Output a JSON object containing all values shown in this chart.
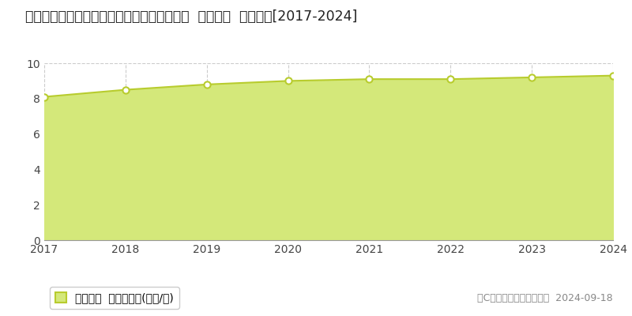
{
  "title": "大分県宇佐市大字葛原字東ノ田２３４番１外  公示地価  地価推移[2017-2024]",
  "years": [
    2017,
    2018,
    2019,
    2020,
    2021,
    2022,
    2023,
    2024
  ],
  "values": [
    8.1,
    8.5,
    8.8,
    9.0,
    9.1,
    9.1,
    9.2,
    9.3
  ],
  "line_color": "#b8cc2e",
  "fill_color": "#d4e87a",
  "fill_alpha": 1.0,
  "marker_facecolor": "white",
  "marker_edge_color": "#b8cc2e",
  "bg_color": "#ffffff",
  "plot_bg_color": "#ffffff",
  "grid_color": "#cccccc",
  "ylim": [
    0,
    10
  ],
  "yticks": [
    0,
    2,
    4,
    6,
    8,
    10
  ],
  "legend_label": "公示地価  平均坪単価(万円/坪)",
  "copyright_text": "（C）土地価格ドットコム  2024-09-18",
  "title_fontsize": 12.5,
  "tick_fontsize": 10,
  "legend_fontsize": 10,
  "copyright_fontsize": 9
}
